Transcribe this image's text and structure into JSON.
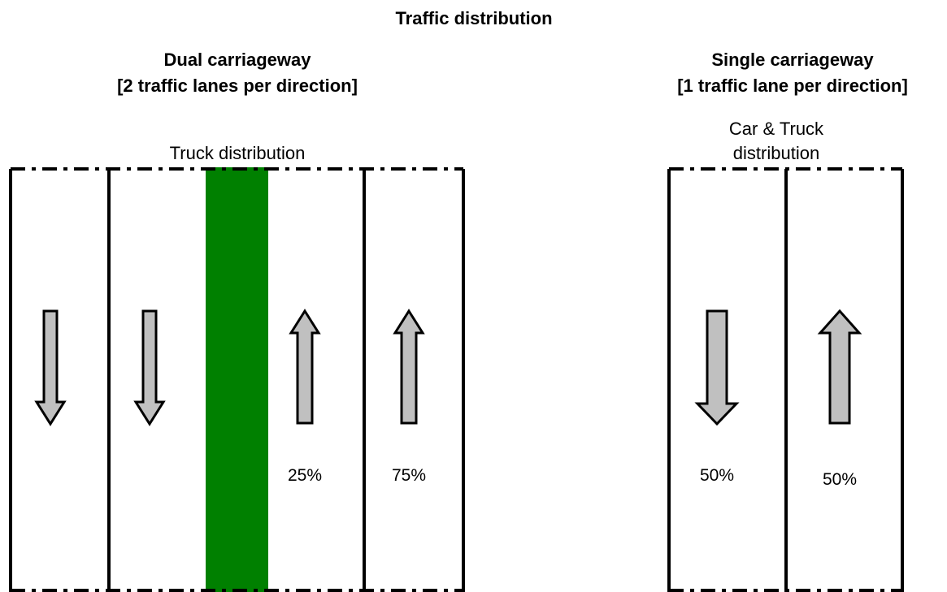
{
  "title": "Traffic distribution",
  "dual": {
    "title": [
      "Dual carriageway",
      "[2 traffic lanes per direction]"
    ],
    "subtitle": "Truck distribution",
    "lanes": [
      "25%",
      "75%"
    ]
  },
  "single": {
    "title": [
      "Single carriageway",
      "[1 traffic lane per direction]"
    ],
    "subtitle": [
      "Car & Truck",
      "distribution"
    ],
    "lanes": [
      "50%",
      "50%"
    ]
  }
}
